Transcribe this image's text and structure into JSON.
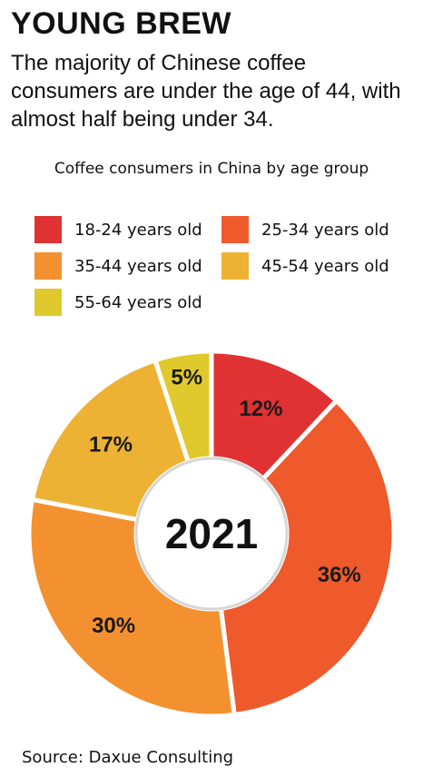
{
  "headline": "YOUNG BREW",
  "dek": "The majority of Chinese coffee consumers are under the age of 44, with almost half being under 34.",
  "source": "Source: Daxue Consulting",
  "chart_data": {
    "type": "pie",
    "title": "Coffee consumers in China by age group",
    "center_label": "2021",
    "unit": "%",
    "categories": [
      "18-24 years old",
      "25-34 years old",
      "35-44 years old",
      "45-54 years old",
      "55-64 years old"
    ],
    "values": [
      12,
      36,
      30,
      17,
      5
    ],
    "colors": [
      "#e03232",
      "#ee5a2b",
      "#f39131",
      "#edb233",
      "#e0c92c"
    ],
    "legend_placement": "top"
  }
}
